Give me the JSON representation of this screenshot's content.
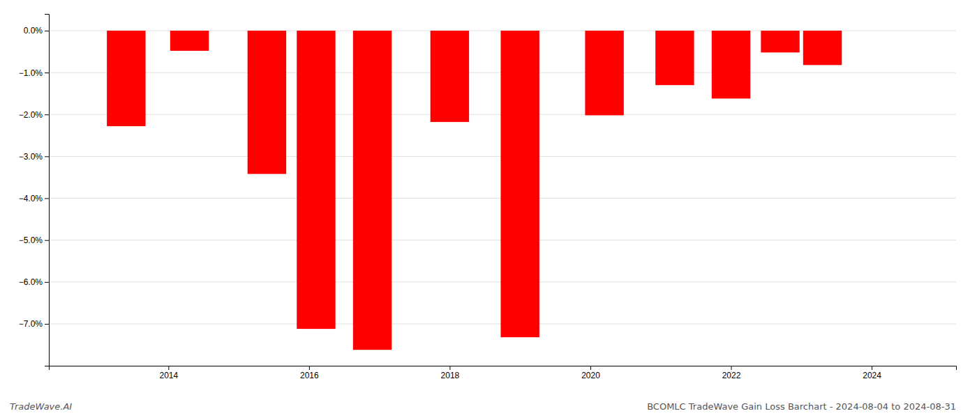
{
  "chart_data": {
    "type": "bar",
    "title": "BCOMLC TradeWave Gain Loss Barchart - 2024-08-04 to 2024-08-31",
    "annotations": [
      "TradeWave.AI"
    ],
    "x": [
      2013.4,
      2014.3,
      2015.4,
      2016.1,
      2016.9,
      2018.0,
      2019.0,
      2020.2,
      2021.2,
      2022.0,
      2022.7,
      2023.3
    ],
    "values": [
      -2.28,
      -0.48,
      -3.42,
      -7.12,
      -7.62,
      -2.18,
      -7.32,
      -2.02,
      -1.3,
      -1.62,
      -0.52,
      -0.82
    ],
    "color": "#ff0000",
    "xlim": [
      2012.3,
      2025.2
    ],
    "xticks": [
      2014,
      2016,
      2018,
      2020,
      2022,
      2024
    ],
    "ylim": [
      -8.0,
      0.4
    ],
    "yticks": [
      {
        "value": 0.0,
        "label": "0.0%"
      },
      {
        "value": -1.0,
        "label": "−1.0%"
      },
      {
        "value": -2.0,
        "label": "−2.0%"
      },
      {
        "value": -3.0,
        "label": "−3.0%"
      },
      {
        "value": -4.0,
        "label": "−4.0%"
      },
      {
        "value": -5.0,
        "label": "−5.0%"
      },
      {
        "value": -6.0,
        "label": "−6.0%"
      },
      {
        "value": -7.0,
        "label": "−7.0%"
      }
    ],
    "grid": true
  }
}
